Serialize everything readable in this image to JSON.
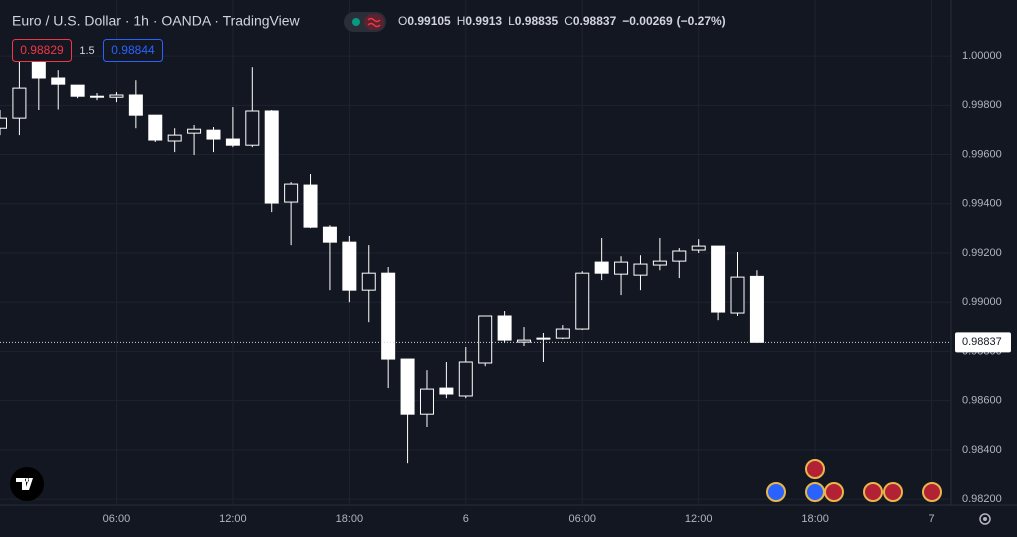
{
  "header": {
    "title": "Euro / U.S. Dollar · 1h · OANDA · TradingView",
    "ohlc_labels": [
      "O",
      "H",
      "L",
      "C"
    ],
    "change": "−0.00269",
    "change_pct": "(−0.27%)"
  },
  "order_panel": {
    "sell_price": "0.98829",
    "spread": "1.5",
    "buy_price": "0.98844"
  },
  "chart_data": {
    "type": "candlestick",
    "x": [
      0,
      1,
      2,
      3,
      4,
      5,
      6,
      7,
      8,
      9,
      10,
      11,
      12,
      13,
      14,
      15,
      16,
      17,
      18,
      19,
      20,
      21,
      22,
      23,
      24,
      25,
      26,
      27,
      28,
      29,
      30,
      31,
      32,
      33,
      34,
      35,
      36,
      37,
      38,
      39
    ],
    "open": [
      0.99707,
      0.99748,
      0.99976,
      0.99911,
      0.99882,
      0.99837,
      0.99833,
      0.99842,
      0.9976,
      0.99655,
      0.99687,
      0.99699,
      0.99663,
      0.99638,
      0.99777,
      0.99407,
      0.99476,
      0.99305,
      0.99244,
      0.99049,
      0.99118,
      0.98769,
      0.98545,
      0.98651,
      0.98619,
      0.98753,
      0.98944,
      0.98838,
      0.98854,
      0.98854,
      0.98891,
      0.99163,
      0.99114,
      0.9911,
      0.99151,
      0.99167,
      0.99212,
      0.99228,
      0.98956,
      0.99105
    ],
    "high": [
      0.99781,
      0.99984,
      1.0,
      0.99943,
      0.99882,
      0.9985,
      0.99854,
      0.99902,
      0.9976,
      0.99707,
      0.9972,
      0.99712,
      0.99793,
      0.99955,
      0.99781,
      0.99488,
      0.99521,
      0.99313,
      0.99269,
      0.99232,
      0.99143,
      0.98769,
      0.98724,
      0.98757,
      0.98818,
      0.98944,
      0.98964,
      0.98899,
      0.98875,
      0.98907,
      0.99126,
      0.99261,
      0.99187,
      0.99191,
      0.99261,
      0.9922,
      0.99256,
      0.99228,
      0.99204,
      0.9913
    ],
    "low": [
      0.99679,
      0.99679,
      0.99781,
      0.99783,
      0.99829,
      0.99821,
      0.99813,
      0.99707,
      0.99651,
      0.9961,
      0.99598,
      0.9961,
      0.9963,
      0.9963,
      0.99366,
      0.99232,
      0.99301,
      0.99049,
      0.99,
      0.98919,
      0.98651,
      0.98346,
      0.98493,
      0.9861,
      0.9861,
      0.9874,
      0.98834,
      0.98822,
      0.98757,
      0.9885,
      0.98887,
      0.9909,
      0.99029,
      0.99049,
      0.9913,
      0.99098,
      0.992,
      0.98927,
      0.98944,
      0.98835
    ],
    "close": [
      0.99748,
      0.9987,
      0.99911,
      0.99886,
      0.99837,
      0.99833,
      0.99842,
      0.9976,
      0.99659,
      0.99679,
      0.99703,
      0.99663,
      0.99638,
      0.99777,
      0.99403,
      0.9948,
      0.99305,
      0.99244,
      0.99049,
      0.99118,
      0.98769,
      0.98545,
      0.98647,
      0.98627,
      0.98757,
      0.98944,
      0.98846,
      0.98846,
      0.9885,
      0.98891,
      0.99118,
      0.99118,
      0.99163,
      0.99155,
      0.99167,
      0.99208,
      0.99228,
      0.9896,
      0.99102,
      0.98837
    ],
    "up_color": "#131722",
    "down_color": "#ffffff",
    "wick_color": "#ffffff",
    "grid": true,
    "xlim": [
      0,
      49
    ],
    "xticks": [
      {
        "value": 6,
        "label": "06:00"
      },
      {
        "value": 12,
        "label": "12:00"
      },
      {
        "value": 18,
        "label": "18:00"
      },
      {
        "value": 24,
        "label": "6"
      },
      {
        "value": 30,
        "label": "06:00"
      },
      {
        "value": 36,
        "label": "12:00"
      },
      {
        "value": 42,
        "label": "18:00"
      },
      {
        "value": 48,
        "label": "7"
      }
    ],
    "ylim": [
      0.98176,
      1.00228
    ],
    "yticks": [
      {
        "value": 1.0,
        "label": "1.00000"
      },
      {
        "value": 0.998,
        "label": "0.99800"
      },
      {
        "value": 0.996,
        "label": "0.99600"
      },
      {
        "value": 0.994,
        "label": "0.99400"
      },
      {
        "value": 0.992,
        "label": "0.99200"
      },
      {
        "value": 0.99,
        "label": "0.99000"
      },
      {
        "value": 0.988,
        "label": "0.98800"
      },
      {
        "value": 0.986,
        "label": "0.98600"
      },
      {
        "value": 0.984,
        "label": "0.98400"
      },
      {
        "value": 0.982,
        "label": "0.98200"
      }
    ]
  }
}
